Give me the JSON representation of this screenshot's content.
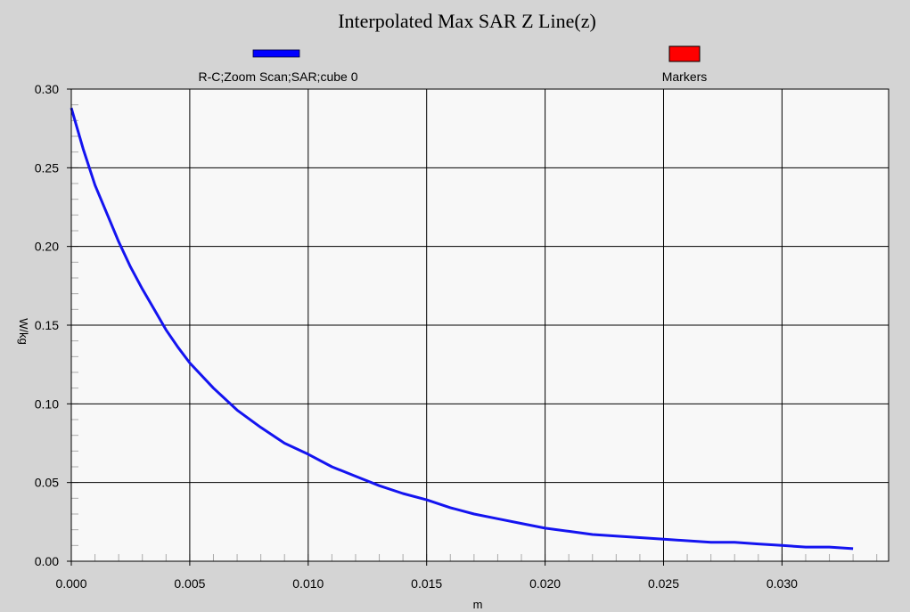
{
  "chart_data": {
    "type": "line",
    "title": "Interpolated Max SAR Z Line(z)",
    "xlabel": "m",
    "ylabel": "W/kg",
    "xlim": [
      0.0,
      0.0345
    ],
    "ylim": [
      0.0,
      0.3
    ],
    "x_ticks": [
      "0.000",
      "0.005",
      "0.010",
      "0.015",
      "0.020",
      "0.025",
      "0.030"
    ],
    "x_tick_values": [
      0.0,
      0.005,
      0.01,
      0.015,
      0.02,
      0.025,
      0.03
    ],
    "y_ticks": [
      "0.00",
      "0.05",
      "0.10",
      "0.15",
      "0.20",
      "0.25",
      "0.30"
    ],
    "y_tick_values": [
      0.0,
      0.05,
      0.1,
      0.15,
      0.2,
      0.25,
      0.3
    ],
    "grid": true,
    "legend_position": "top",
    "legend": [
      {
        "name": "R-C;Zoom Scan;SAR;cube 0",
        "color": "#0000ff",
        "kind": "line"
      },
      {
        "name": "Markers",
        "color": "#ff0000",
        "kind": "box"
      }
    ],
    "series": [
      {
        "name": "R-C;Zoom Scan;SAR;cube 0",
        "color": "#1414f0",
        "x": [
          0.0,
          0.0005,
          0.001,
          0.0015,
          0.002,
          0.0025,
          0.003,
          0.0035,
          0.004,
          0.0045,
          0.005,
          0.006,
          0.007,
          0.008,
          0.009,
          0.01,
          0.011,
          0.012,
          0.013,
          0.014,
          0.015,
          0.016,
          0.017,
          0.018,
          0.019,
          0.02,
          0.021,
          0.022,
          0.023,
          0.024,
          0.025,
          0.026,
          0.027,
          0.028,
          0.029,
          0.03,
          0.031,
          0.032,
          0.033
        ],
        "y": [
          0.288,
          0.262,
          0.239,
          0.221,
          0.203,
          0.187,
          0.173,
          0.16,
          0.147,
          0.136,
          0.126,
          0.11,
          0.096,
          0.085,
          0.075,
          0.068,
          0.06,
          0.054,
          0.048,
          0.043,
          0.039,
          0.034,
          0.03,
          0.027,
          0.024,
          0.021,
          0.019,
          0.017,
          0.016,
          0.015,
          0.014,
          0.013,
          0.012,
          0.012,
          0.011,
          0.01,
          0.009,
          0.009,
          0.008
        ]
      }
    ]
  }
}
